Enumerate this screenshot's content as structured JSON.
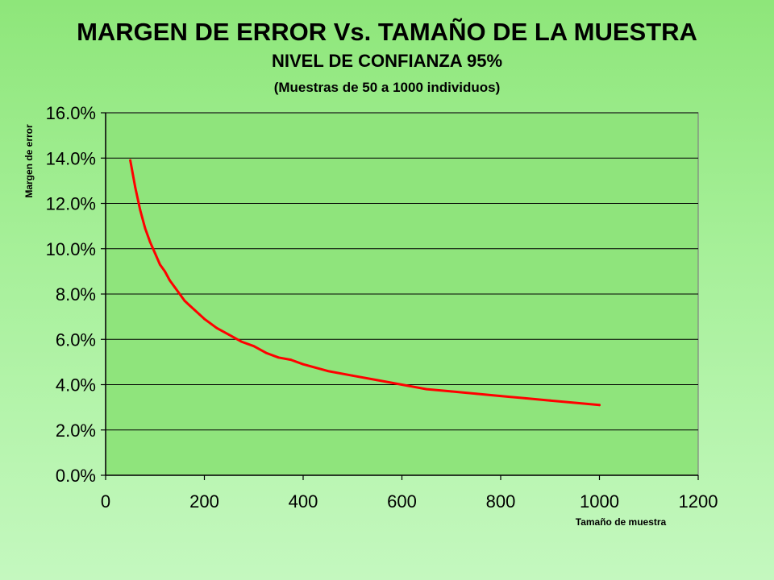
{
  "chart_data": {
    "type": "line",
    "title": "MARGEN DE ERROR Vs. TAMAÑO DE LA MUESTRA",
    "subtitle": "NIVEL DE CONFIANZA 95%",
    "note": "(Muestras de 50 a 1000 individuos)",
    "xlabel": "Tamaño de muestra",
    "ylabel": "Margen de error",
    "xlim": [
      0,
      1200
    ],
    "ylim": [
      0,
      16
    ],
    "x_ticks": [
      0,
      200,
      400,
      600,
      800,
      1000,
      1200
    ],
    "y_ticks": [
      0,
      2,
      4,
      6,
      8,
      10,
      12,
      14,
      16
    ],
    "y_tick_labels": [
      "0.0%",
      "2.0%",
      "4.0%",
      "6.0%",
      "8.0%",
      "10.0%",
      "12.0%",
      "14.0%",
      "16.0%"
    ],
    "grid": "horizontal",
    "legend": "none",
    "series": [
      {
        "color": "#ff0000",
        "x": [
          50,
          60,
          70,
          80,
          90,
          100,
          110,
          120,
          130,
          140,
          150,
          160,
          170,
          180,
          190,
          200,
          225,
          250,
          275,
          300,
          325,
          350,
          375,
          400,
          450,
          500,
          550,
          600,
          650,
          700,
          750,
          800,
          850,
          900,
          950,
          1000
        ],
        "y": [
          13.9,
          12.7,
          11.7,
          10.9,
          10.3,
          9.8,
          9.3,
          9.0,
          8.6,
          8.3,
          8.0,
          7.7,
          7.5,
          7.3,
          7.1,
          6.9,
          6.5,
          6.2,
          5.9,
          5.7,
          5.4,
          5.2,
          5.1,
          4.9,
          4.6,
          4.4,
          4.2,
          4.0,
          3.8,
          3.7,
          3.6,
          3.5,
          3.4,
          3.3,
          3.2,
          3.1
        ]
      }
    ]
  },
  "colors": {
    "plot_background": "#8fe47c",
    "plot_border": "#808080",
    "gridline": "#000000",
    "line": "#ff0000"
  }
}
